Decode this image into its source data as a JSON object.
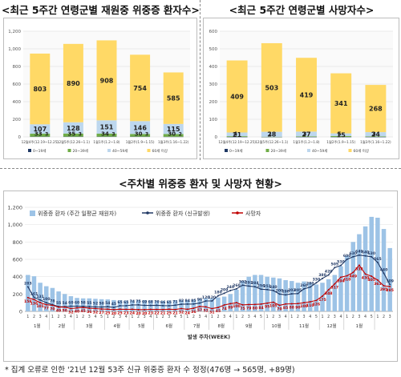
{
  "titles": {
    "left": "<최근 5주간 연령군별 재원중 위중증 환자수>",
    "right": "<최근 5주간 연령군별 사망자수>",
    "bottom": "<주차별 위중증 환자 및 사망자 현황>"
  },
  "footnote": "* 집계 오류로 인한 '21년 12월 53주 신규 위중증 환자 수 정정(476명 → 565명, +89명)",
  "colors": {
    "yellow": "#FFD966",
    "lightblue": "#BDD7EE",
    "darkblue": "#1F3864",
    "green": "#70AD47",
    "barblue": "#9DC3E6",
    "navy": "#203864",
    "red": "#C00000"
  },
  "chart_data": [
    {
      "type": "bar",
      "stacked": true,
      "title": "<최근 5주간 연령군별 재원중 위중증 환자수>",
      "categories": [
        "12월4주(12.19~12.25)",
        "12월5주(12.26~1.1)",
        "1월1주(1.2~1.8)",
        "1월2주(1.9~1.15)",
        "1월3주(1.16~1.22)"
      ],
      "series": [
        {
          "name": "0~19세",
          "values": [
            3,
            3,
            3,
            3,
            2
          ]
        },
        {
          "name": "20~39세",
          "values": [
            33,
            35,
            34,
            30,
            30
          ]
        },
        {
          "name": "40~59세",
          "values": [
            107,
            128,
            151,
            146,
            115
          ]
        },
        {
          "name": "60세 이상",
          "values": [
            803,
            890,
            908,
            754,
            585
          ]
        }
      ],
      "ylim": [
        0,
        1200
      ],
      "yticks": [
        0,
        200,
        400,
        600,
        800,
        1000,
        1200
      ],
      "legend_position": "bottom"
    },
    {
      "type": "bar",
      "stacked": true,
      "title": "<최근 5주간 연령군별 사망자수>",
      "categories": [
        "12월4주(12.19~12.25)",
        "12월5주(12.26~1.1)",
        "1월1주(1.2~1.8)",
        "1월2주(1.9~1.15)",
        "1월3주(1.16~1.22)"
      ],
      "series": [
        {
          "name": "0~19세",
          "values": [
            0,
            0,
            0,
            0,
            0
          ]
        },
        {
          "name": "20~39세",
          "values": [
            4,
            1,
            3,
            5,
            3
          ]
        },
        {
          "name": "40~59세",
          "values": [
            21,
            28,
            27,
            15,
            24
          ]
        },
        {
          "name": "60세 이상",
          "values": [
            409,
            503,
            419,
            341,
            268
          ]
        }
      ],
      "ylim": [
        0,
        600
      ],
      "yticks": [
        0,
        100,
        200,
        300,
        400,
        500,
        600
      ],
      "legend_position": "bottom"
    },
    {
      "type": "bar+line",
      "title": "<주차별 위중증 환자 및 사망자 현황>",
      "xlabel": "발생 주차(WEEK)",
      "ylim": [
        0,
        1200
      ],
      "yticks": [
        0,
        200,
        400,
        600,
        800,
        1000,
        1200
      ],
      "legend": [
        "위중증 환자 (주간 일평균 재원자)",
        "위중증 환자 (신규발생)",
        "사망자"
      ],
      "legend_position": "top",
      "month_labels": [
        "1월",
        "2월",
        "3월",
        "4월",
        "5월",
        "6월",
        "7월",
        "8월",
        "9월",
        "10월",
        "11월",
        "12월",
        "1월"
      ],
      "week_labels": [
        "1",
        "2",
        "3",
        "4",
        "1",
        "2",
        "3",
        "4",
        "1",
        "2",
        "3",
        "4",
        "5",
        "1",
        "2",
        "3",
        "4",
        "1",
        "2",
        "3",
        "4",
        "1",
        "2",
        "3",
        "4",
        "5",
        "1",
        "2",
        "3",
        "4",
        "1",
        "2",
        "3",
        "4",
        "1",
        "2",
        "3",
        "4",
        "5",
        "1",
        "2",
        "3",
        "4",
        "1",
        "2",
        "3",
        "4",
        "5",
        "1",
        "2",
        "3",
        "4",
        "1",
        "2",
        "3",
        "4",
        "5",
        "1",
        "2",
        "3"
      ],
      "bars": [
        420,
        405,
        330,
        290,
        270,
        230,
        200,
        175,
        155,
        150,
        150,
        145,
        140,
        138,
        130,
        128,
        125,
        128,
        130,
        130,
        125,
        120,
        120,
        125,
        128,
        130,
        130,
        135,
        140,
        150,
        150,
        160,
        170,
        200,
        250,
        350,
        400,
        420,
        420,
        400,
        390,
        380,
        360,
        350,
        330,
        345,
        330,
        310,
        330,
        370,
        420,
        520,
        640,
        800,
        890,
        980,
        1090,
        1080,
        950,
        730
      ],
      "new_severe": [
        283,
        161,
        131,
        100,
        78,
        55,
        54,
        60,
        60,
        58,
        55,
        52,
        50,
        54,
        45,
        65,
        65,
        74,
        75,
        69,
        68,
        70,
        66,
        65,
        71,
        82,
        84,
        85,
        96,
        120,
        120,
        180,
        209,
        240,
        260,
        302,
        292,
        284,
        256,
        251,
        240,
        200,
        190,
        202,
        205,
        260,
        280,
        330,
        380,
        420,
        505,
        530,
        600,
        630,
        649,
        640,
        630,
        565,
        440,
        309
      ],
      "deaths": [
        158,
        136,
        101,
        77,
        70,
        49,
        50,
        32,
        40,
        45,
        36,
        32,
        27,
        25,
        20,
        25,
        23,
        24,
        20,
        20,
        23,
        22,
        21,
        25,
        21,
        32,
        24,
        36,
        57,
        52,
        31,
        45,
        74,
        89,
        100,
        75,
        79,
        80,
        84,
        95,
        105,
        70,
        85,
        88,
        90,
        100,
        110,
        126,
        175,
        248,
        317,
        394,
        410,
        449,
        532,
        430,
        405,
        361,
        295,
        285
      ]
    }
  ]
}
